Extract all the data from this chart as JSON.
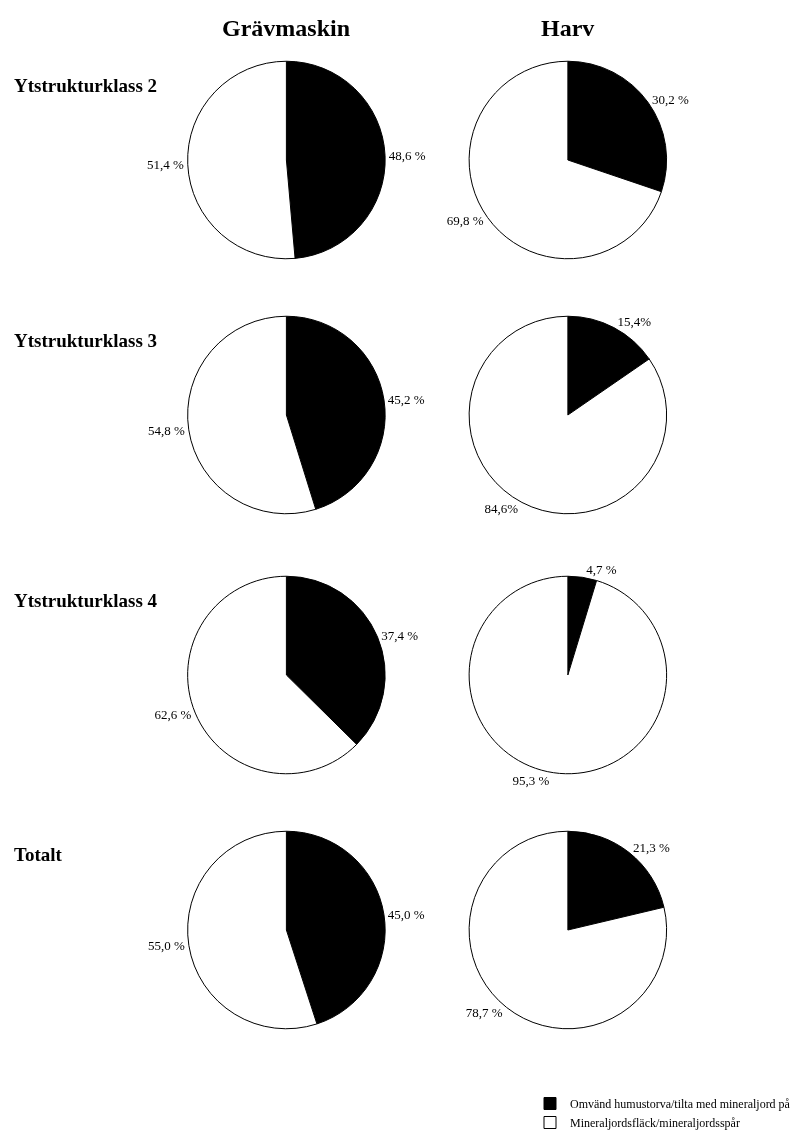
{
  "chart_data": [
    {
      "type": "pie",
      "title": "Grävmaskin",
      "annotations": [
        "Ytstrukturklass 2"
      ],
      "values": [
        48.6,
        51.4
      ],
      "value_labels": [
        "48,6 %",
        "51,4 %"
      ],
      "colors": [
        "#000000",
        "#ffffff"
      ]
    },
    {
      "type": "pie",
      "title": "Harv",
      "values": [
        30.2,
        69.8
      ],
      "value_labels": [
        "30,2 %",
        "69,8 %"
      ],
      "colors": [
        "#000000",
        "#ffffff"
      ]
    },
    {
      "type": "pie",
      "annotations": [
        "Ytstrukturklass 3"
      ],
      "values": [
        45.2,
        54.8
      ],
      "value_labels": [
        "45,2 %",
        "54,8 %"
      ],
      "colors": [
        "#000000",
        "#ffffff"
      ]
    },
    {
      "type": "pie",
      "values": [
        15.4,
        84.6
      ],
      "value_labels": [
        "15,4%",
        "84,6%"
      ],
      "colors": [
        "#000000",
        "#ffffff"
      ]
    },
    {
      "type": "pie",
      "annotations": [
        "Ytstrukturklass 4"
      ],
      "values": [
        37.4,
        62.6
      ],
      "value_labels": [
        "37,4 %",
        "62,6 %"
      ],
      "colors": [
        "#000000",
        "#ffffff"
      ]
    },
    {
      "type": "pie",
      "values": [
        4.7,
        95.3
      ],
      "value_labels": [
        "4,7 %",
        "95,3 %"
      ],
      "colors": [
        "#000000",
        "#ffffff"
      ]
    },
    {
      "type": "pie",
      "annotations": [
        "Totalt"
      ],
      "values": [
        45.0,
        55.0
      ],
      "value_labels": [
        "45,0 %",
        "55,0 %"
      ],
      "colors": [
        "#000000",
        "#ffffff"
      ]
    },
    {
      "type": "pie",
      "categories": [
        "Omvänd humustorva/tilta med mineraljord på",
        "Mineraljordsfläck/mineraljordsspår"
      ],
      "values": [
        21.3,
        78.7
      ],
      "value_labels": [
        "21,3 %",
        "78,7 %"
      ],
      "colors": [
        "#000000",
        "#ffffff"
      ],
      "legend": "bottom right"
    }
  ]
}
